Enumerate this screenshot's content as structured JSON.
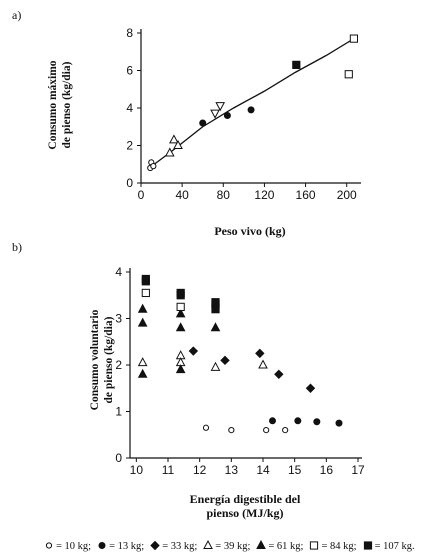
{
  "panel_labels": [
    "a)",
    "b)"
  ],
  "chart_data": [
    {
      "type": "scatter",
      "xlabel": "Peso vivo (kg)",
      "ylabel_line1": "Consumo máximo",
      "ylabel_line2": "de pienso (kg/dia)",
      "xlim": [
        0,
        210
      ],
      "ylim": [
        0,
        8
      ],
      "xticks": [
        0,
        40,
        80,
        120,
        160,
        200
      ],
      "yticks": [
        0,
        2,
        4,
        6,
        8
      ],
      "series": [
        {
          "marker": "open-circle",
          "points": [
            [
              9,
              0.8
            ],
            [
              10,
              1.1
            ],
            [
              12,
              0.9
            ]
          ]
        },
        {
          "marker": "filled-circle",
          "points": [
            [
              60,
              3.2
            ],
            [
              84,
              3.6
            ],
            [
              107,
              3.9
            ]
          ]
        },
        {
          "marker": "open-triangle-up",
          "points": [
            [
              28,
              1.6
            ],
            [
              32,
              2.3
            ],
            [
              36,
              2.0
            ]
          ]
        },
        {
          "marker": "open-triangle-down",
          "points": [
            [
              72,
              3.7
            ],
            [
              77,
              4.1
            ]
          ]
        },
        {
          "marker": "filled-square",
          "points": [
            [
              151,
              6.3
            ]
          ]
        },
        {
          "marker": "open-square",
          "points": [
            [
              202,
              5.8
            ],
            [
              207,
              7.7
            ]
          ]
        }
      ],
      "fit_line": [
        [
          8,
          0.8
        ],
        [
          30,
          1.7
        ],
        [
          60,
          3.0
        ],
        [
          90,
          4.0
        ],
        [
          120,
          4.9
        ],
        [
          150,
          5.9
        ],
        [
          180,
          6.8
        ],
        [
          207,
          7.7
        ]
      ]
    },
    {
      "type": "scatter",
      "xlabel_line1": "Energía digestible del",
      "xlabel_line2": "pienso (MJ/kg)",
      "ylabel_line1": "Consumo voluntario",
      "ylabel_line2": "de pienso (kg/dia)",
      "xlim": [
        9.8,
        17
      ],
      "ylim": [
        0,
        4
      ],
      "xticks": [
        10,
        11,
        12,
        13,
        14,
        15,
        16,
        17
      ],
      "yticks": [
        0,
        1,
        2,
        3,
        4
      ],
      "series": [
        {
          "marker": "open-circle",
          "points": [
            [
              12.2,
              0.65
            ],
            [
              13,
              0.6
            ],
            [
              14.1,
              0.6
            ],
            [
              14.7,
              0.6
            ]
          ]
        },
        {
          "marker": "filled-circle",
          "points": [
            [
              14.3,
              0.8
            ],
            [
              15.1,
              0.8
            ],
            [
              15.7,
              0.78
            ],
            [
              16.4,
              0.75
            ]
          ]
        },
        {
          "marker": "filled-diamond",
          "points": [
            [
              11.8,
              2.3
            ],
            [
              12.8,
              2.1
            ],
            [
              13.9,
              2.25
            ],
            [
              14.5,
              1.8
            ],
            [
              15.5,
              1.5
            ]
          ]
        },
        {
          "marker": "open-triangle",
          "points": [
            [
              10.2,
              2.05
            ],
            [
              11.4,
              2.2
            ],
            [
              11.4,
              2.05
            ],
            [
              12.5,
              1.95
            ],
            [
              14,
              2.0
            ]
          ]
        },
        {
          "marker": "filled-triangle",
          "points": [
            [
              10.2,
              3.2
            ],
            [
              10.2,
              2.9
            ],
            [
              10.2,
              1.8
            ],
            [
              11.4,
              3.1
            ],
            [
              11.4,
              2.8
            ],
            [
              11.4,
              1.9
            ],
            [
              12.5,
              2.8
            ]
          ]
        },
        {
          "marker": "open-square",
          "points": [
            [
              10.3,
              3.55
            ],
            [
              11.4,
              3.25
            ],
            [
              12.5,
              3.3
            ]
          ]
        },
        {
          "marker": "filled-square",
          "points": [
            [
              10.3,
              3.8
            ],
            [
              10.3,
              3.85
            ],
            [
              11.4,
              3.5
            ],
            [
              11.4,
              3.55
            ],
            [
              12.5,
              3.35
            ],
            [
              12.5,
              3.2
            ]
          ]
        }
      ]
    }
  ],
  "legend": [
    {
      "marker": "open-circle",
      "label": "= 10 kg;"
    },
    {
      "marker": "filled-circle",
      "label": "= 13 kg;"
    },
    {
      "marker": "filled-diamond",
      "label": "= 33 kg;"
    },
    {
      "marker": "open-triangle",
      "label": "= 39 kg;"
    },
    {
      "marker": "filled-triangle",
      "label": "= 61 kg;"
    },
    {
      "marker": "open-square",
      "label": "= 84 kg;"
    },
    {
      "marker": "filled-square",
      "label": "= 107 kg."
    }
  ]
}
